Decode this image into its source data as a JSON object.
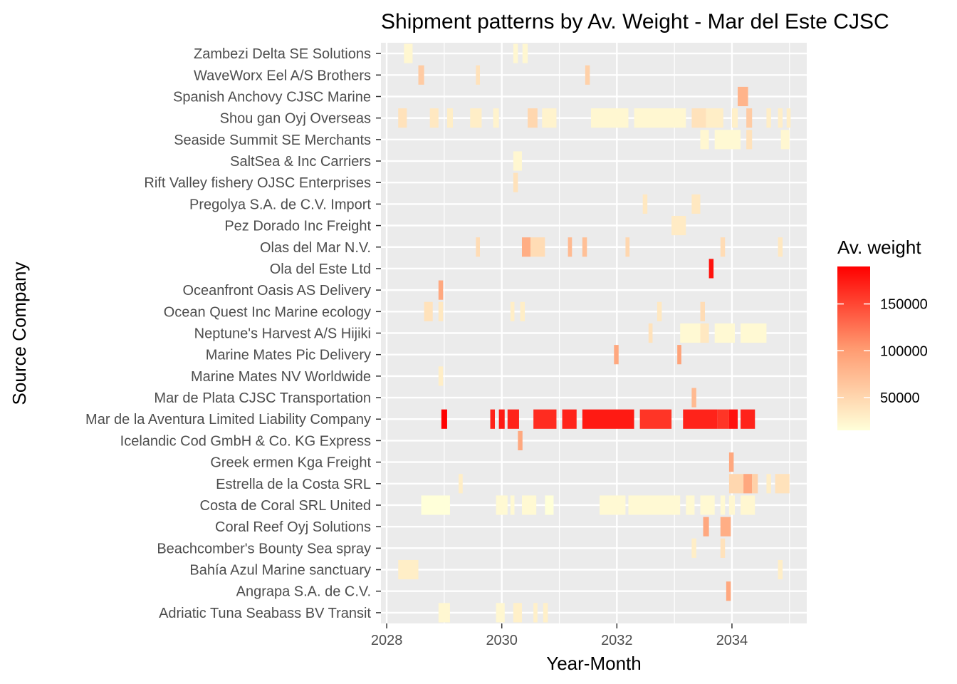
{
  "chart_data": {
    "type": "heatmap",
    "title": "Shipment patterns by Av. Weight - Mar del Este CJSC",
    "xlabel": "Year-Month",
    "ylabel": "Source Company",
    "legend": {
      "title": "Av. weight",
      "position": "right",
      "ticks": [
        50000,
        100000,
        150000
      ],
      "tick_labels": [
        "50000",
        "100000",
        "150000"
      ],
      "range": [
        15000,
        190000
      ]
    },
    "colors": {
      "low": "#FFFFD9",
      "high": "#FF0000",
      "panel": "#EBEBEB",
      "grid": "#FFFFFF"
    },
    "xlim": [
      2027.9,
      2035.3
    ],
    "x_ticks": [
      2028,
      2030,
      2032,
      2034
    ],
    "x_tick_labels": [
      "2028",
      "2030",
      "2032",
      "2034"
    ],
    "categories": [
      "Zambezi Delta  SE Solutions",
      "WaveWorx Eel A/S Brothers",
      "Spanish Anchovy CJSC Marine",
      "Shou gan  Oyj Overseas",
      "Seaside Summit SE Merchants",
      "SaltSea & Inc Carriers",
      "Rift Valley fishery OJSC Enterprises",
      "Pregolya S.A. de C.V. Import",
      "Pez Dorado Inc Freight ",
      "Olas del Mar N.V.",
      "Ola del Este Ltd",
      "Oceanfront Oasis AS Delivery",
      "Ocean Quest Inc Marine ecology",
      "Neptune's Harvest A/S Hijiki",
      "Marine Mates Pic Delivery",
      "Marine Mates NV Worldwide",
      "Mar de Plata CJSC Transportation",
      "Mar de la Aventura Limited Liability Company",
      "Icelandic Cod GmbH & Co. KG Express",
      "Greek ermen Kga Freight ",
      "Estrella de la Costa SRL",
      "Costa de Coral SRL United",
      "Coral Reef Oyj Solutions",
      "Beachcomber's Bounty Sea spray",
      "Bahía Azul Marine sanctuary",
      "Angrapa S.A. de C.V.",
      "Adriatic Tuna Seabass BV Transit"
    ],
    "cells": [
      {
        "company": "Zambezi Delta  SE Solutions",
        "periods": [
          [
            2028.3,
            2028.45,
            22000
          ],
          [
            2030.2,
            2030.28,
            22000
          ],
          [
            2030.36,
            2030.45,
            22000
          ]
        ]
      },
      {
        "company": "WaveWorx Eel A/S Brothers",
        "periods": [
          [
            2028.55,
            2028.65,
            60000
          ],
          [
            2029.55,
            2029.62,
            40000
          ],
          [
            2031.45,
            2031.53,
            55000
          ]
        ]
      },
      {
        "company": "Spanish Anchovy CJSC Marine",
        "periods": [
          [
            2034.1,
            2034.28,
            80000
          ]
        ]
      },
      {
        "company": "Shou gan  Oyj Overseas",
        "periods": [
          [
            2028.2,
            2028.35,
            40000
          ],
          [
            2028.75,
            2028.9,
            35000
          ],
          [
            2029.05,
            2029.15,
            30000
          ],
          [
            2029.45,
            2029.65,
            30000
          ],
          [
            2029.85,
            2029.95,
            25000
          ],
          [
            2030.45,
            2030.62,
            50000
          ],
          [
            2030.7,
            2030.95,
            25000
          ],
          [
            2031.55,
            2032.2,
            22000
          ],
          [
            2032.3,
            2033.2,
            22000
          ],
          [
            2033.3,
            2033.55,
            40000
          ],
          [
            2033.55,
            2033.85,
            30000
          ],
          [
            2034.0,
            2034.1,
            28000
          ],
          [
            2034.25,
            2034.35,
            60000
          ],
          [
            2034.6,
            2034.68,
            30000
          ],
          [
            2034.8,
            2034.88,
            30000
          ],
          [
            2034.95,
            2035.02,
            30000
          ]
        ]
      },
      {
        "company": "Seaside Summit SE Merchants",
        "periods": [
          [
            2033.45,
            2033.6,
            22000
          ],
          [
            2033.7,
            2034.15,
            20000
          ],
          [
            2034.25,
            2034.35,
            40000
          ],
          [
            2034.85,
            2035.0,
            22000
          ]
        ]
      },
      {
        "company": "SaltSea & Inc Carriers",
        "periods": [
          [
            2030.2,
            2030.35,
            22000
          ]
        ]
      },
      {
        "company": "Rift Valley fishery OJSC Enterprises",
        "periods": [
          [
            2030.2,
            2030.28,
            40000
          ]
        ]
      },
      {
        "company": "Pregolya S.A. de C.V. Import",
        "periods": [
          [
            2032.45,
            2032.53,
            35000
          ],
          [
            2033.3,
            2033.45,
            35000
          ]
        ]
      },
      {
        "company": "Pez Dorado Inc Freight ",
        "periods": [
          [
            2032.95,
            2033.2,
            32000
          ]
        ]
      },
      {
        "company": "Olas del Mar N.V.",
        "periods": [
          [
            2029.55,
            2029.62,
            45000
          ],
          [
            2030.35,
            2030.5,
            85000
          ],
          [
            2030.5,
            2030.75,
            45000
          ],
          [
            2031.15,
            2031.22,
            75000
          ],
          [
            2031.4,
            2031.48,
            70000
          ],
          [
            2032.15,
            2032.22,
            50000
          ],
          [
            2033.8,
            2033.88,
            45000
          ],
          [
            2034.8,
            2034.88,
            35000
          ]
        ]
      },
      {
        "company": "Ola del Este Ltd",
        "periods": [
          [
            2033.6,
            2033.68,
            180000
          ]
        ]
      },
      {
        "company": "Oceanfront Oasis AS Delivery",
        "periods": [
          [
            2028.9,
            2028.98,
            90000
          ]
        ]
      },
      {
        "company": "Ocean Quest Inc Marine ecology",
        "periods": [
          [
            2028.65,
            2028.8,
            40000
          ],
          [
            2028.9,
            2028.98,
            35000
          ],
          [
            2030.15,
            2030.22,
            30000
          ],
          [
            2030.32,
            2030.4,
            30000
          ],
          [
            2032.7,
            2032.78,
            35000
          ],
          [
            2033.45,
            2033.53,
            45000
          ]
        ]
      },
      {
        "company": "Neptune's Harvest A/S Hijiki",
        "periods": [
          [
            2032.55,
            2032.62,
            40000
          ],
          [
            2033.1,
            2033.45,
            20000
          ],
          [
            2033.45,
            2033.6,
            35000
          ],
          [
            2033.7,
            2034.05,
            20000
          ],
          [
            2034.15,
            2034.6,
            20000
          ]
        ]
      },
      {
        "company": "Marine Mates Pic Delivery",
        "periods": [
          [
            2031.95,
            2032.03,
            90000
          ],
          [
            2033.05,
            2033.12,
            95000
          ]
        ]
      },
      {
        "company": "Marine Mates NV Worldwide",
        "periods": [
          [
            2028.9,
            2028.98,
            30000
          ]
        ]
      },
      {
        "company": "Mar de Plata CJSC Transportation",
        "periods": [
          [
            2033.3,
            2033.38,
            75000
          ]
        ]
      },
      {
        "company": "Mar de la Aventura Limited Liability Company",
        "periods": [
          [
            2028.95,
            2029.05,
            190000
          ],
          [
            2029.8,
            2029.88,
            170000
          ],
          [
            2029.95,
            2030.05,
            175000
          ],
          [
            2030.1,
            2030.3,
            170000
          ],
          [
            2030.55,
            2030.95,
            165000
          ],
          [
            2031.05,
            2031.3,
            170000
          ],
          [
            2031.4,
            2032.3,
            175000
          ],
          [
            2032.4,
            2032.95,
            160000
          ],
          [
            2033.15,
            2033.75,
            170000
          ],
          [
            2033.75,
            2033.95,
            160000
          ],
          [
            2033.95,
            2034.1,
            180000
          ],
          [
            2034.15,
            2034.4,
            170000
          ]
        ]
      },
      {
        "company": "Icelandic Cod GmbH & Co. KG Express",
        "periods": [
          [
            2030.28,
            2030.36,
            90000
          ]
        ]
      },
      {
        "company": "Greek ermen Kga Freight ",
        "periods": [
          [
            2033.95,
            2034.03,
            90000
          ]
        ]
      },
      {
        "company": "Estrella de la Costa SRL",
        "periods": [
          [
            2029.25,
            2029.32,
            30000
          ],
          [
            2033.95,
            2034.2,
            50000
          ],
          [
            2034.2,
            2034.35,
            90000
          ],
          [
            2034.35,
            2034.45,
            55000
          ],
          [
            2034.6,
            2034.68,
            30000
          ],
          [
            2034.75,
            2035.0,
            40000
          ]
        ]
      },
      {
        "company": "Costa de Coral SRL United",
        "periods": [
          [
            2028.6,
            2029.1,
            15000
          ],
          [
            2029.9,
            2030.1,
            20000
          ],
          [
            2030.15,
            2030.22,
            20000
          ],
          [
            2030.35,
            2030.6,
            20000
          ],
          [
            2030.75,
            2030.9,
            15000
          ],
          [
            2031.7,
            2032.15,
            20000
          ],
          [
            2032.2,
            2033.1,
            20000
          ],
          [
            2033.2,
            2033.35,
            20000
          ],
          [
            2033.45,
            2033.7,
            20000
          ],
          [
            2033.8,
            2033.88,
            20000
          ],
          [
            2033.95,
            2034.05,
            22000
          ],
          [
            2034.15,
            2034.4,
            22000
          ]
        ]
      },
      {
        "company": "Coral Reef Oyj Solutions",
        "periods": [
          [
            2033.5,
            2033.6,
            90000
          ],
          [
            2033.8,
            2033.98,
            85000
          ]
        ]
      },
      {
        "company": "Beachcomber's Bounty Sea spray",
        "periods": [
          [
            2033.3,
            2033.38,
            30000
          ],
          [
            2033.8,
            2033.88,
            40000
          ]
        ]
      },
      {
        "company": "Bahía Azul Marine sanctuary",
        "periods": [
          [
            2028.2,
            2028.55,
            30000
          ],
          [
            2034.8,
            2034.88,
            30000
          ]
        ]
      },
      {
        "company": "Angrapa S.A. de C.V.",
        "periods": [
          [
            2033.9,
            2033.98,
            90000
          ]
        ]
      },
      {
        "company": "Adriatic Tuna Seabass BV Transit",
        "periods": [
          [
            2028.9,
            2029.1,
            22000
          ],
          [
            2029.9,
            2030.05,
            22000
          ],
          [
            2030.2,
            2030.35,
            28000
          ],
          [
            2030.55,
            2030.62,
            28000
          ],
          [
            2030.72,
            2030.8,
            28000
          ]
        ]
      }
    ]
  }
}
